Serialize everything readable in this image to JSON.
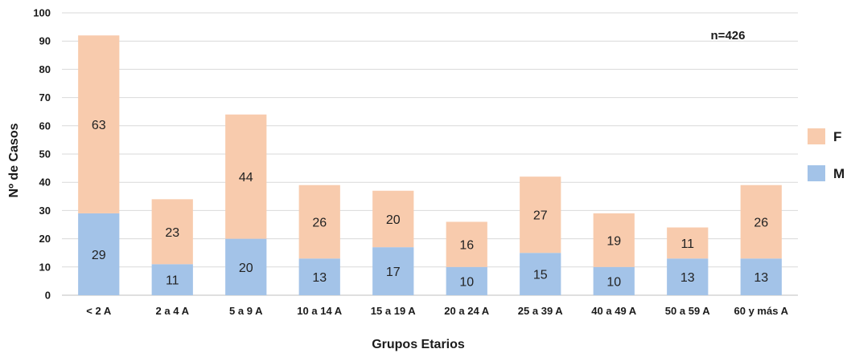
{
  "chart_data": {
    "type": "bar",
    "stacked": true,
    "categories": [
      "< 2 A",
      "2 a 4 A",
      "5 a 9 A",
      "10 a 14 A",
      "15 a 19 A",
      "20 a 24 A",
      "25 a 39 A",
      "40 a 49 A",
      "50 a 59 A",
      "60 y más A"
    ],
    "series": [
      {
        "name": "M",
        "color": "#a3c3e8",
        "values": [
          29,
          11,
          20,
          13,
          17,
          10,
          15,
          10,
          13,
          13
        ]
      },
      {
        "name": "F",
        "color": "#f8cbad",
        "values": [
          63,
          23,
          44,
          26,
          20,
          16,
          27,
          19,
          11,
          26
        ]
      }
    ],
    "legend_order": [
      "F",
      "M"
    ],
    "xlabel": "Grupos Etarios",
    "ylabel": "Nº de Casos",
    "ylim": [
      0,
      100
    ],
    "yticks": [
      0,
      10,
      20,
      30,
      40,
      50,
      60,
      70,
      80,
      90,
      100
    ],
    "grid": true,
    "legend_position": "right",
    "annotation": "n=426"
  }
}
